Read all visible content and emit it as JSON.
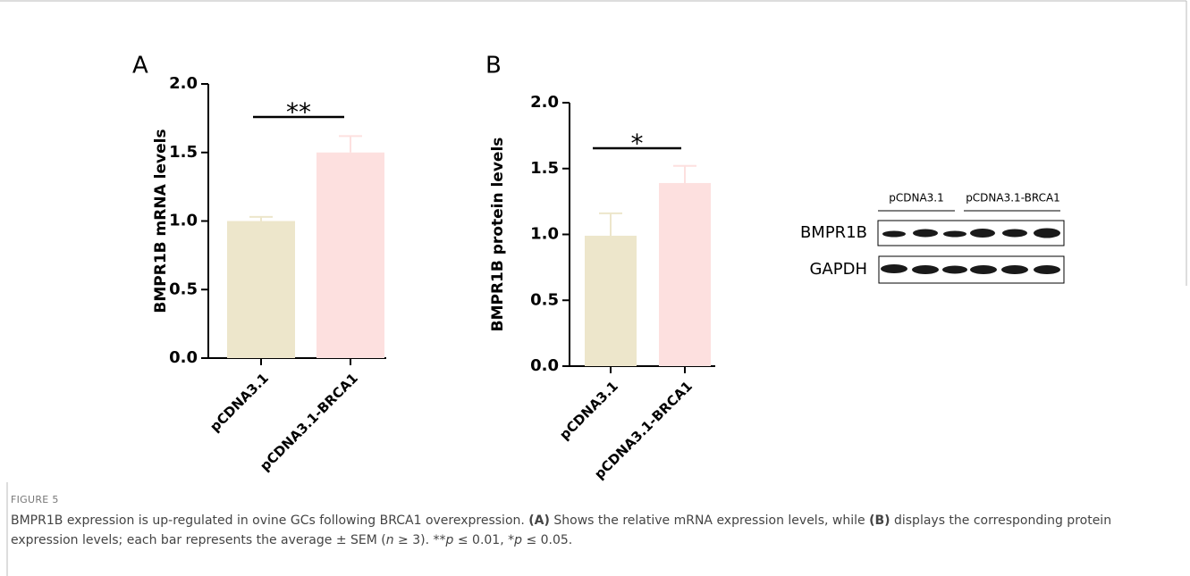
{
  "chart_data": [
    {
      "type": "bar",
      "panel": "A",
      "ylabel": "BMPR1B mRNA levels",
      "categories": [
        "pCDNA3.1",
        "pCDNA3.1-BRCA1"
      ],
      "values": [
        1.0,
        1.5
      ],
      "errors": [
        0.03,
        0.12
      ],
      "colors": [
        "#ede6cb",
        "#fde0df"
      ],
      "ylim": [
        0,
        2.0
      ],
      "yticks": [
        {
          "value": 0,
          "label": "0.0"
        },
        {
          "value": 0.5,
          "label": "0.5"
        },
        {
          "value": 1,
          "label": "1.0"
        },
        {
          "value": 1.5,
          "label": "1.5"
        },
        {
          "value": 2,
          "label": "2.0"
        }
      ],
      "annotation": "**"
    },
    {
      "type": "bar",
      "panel": "B",
      "ylabel": "BMPR1B protein levels",
      "categories": [
        "pCDNA3.1",
        "pCDNA3.1-BRCA1"
      ],
      "values": [
        0.99,
        1.39
      ],
      "errors": [
        0.17,
        0.13
      ],
      "colors": [
        "#ede6cb",
        "#fde0df"
      ],
      "ylim": [
        0,
        2.0
      ],
      "yticks": [
        {
          "value": 0,
          "label": "0.0"
        },
        {
          "value": 0.5,
          "label": "0.5"
        },
        {
          "value": 1,
          "label": "1.0"
        },
        {
          "value": 1.5,
          "label": "1.5"
        },
        {
          "value": 2,
          "label": "2.0"
        }
      ],
      "annotation": "*"
    }
  ],
  "blot": {
    "groups": [
      "pCDNA3.1",
      "pCDNA3.1-BRCA1"
    ],
    "rows": [
      "BMPR1B",
      "GAPDH"
    ]
  },
  "caption": {
    "label": "FIGURE 5",
    "parts": [
      "BMPR1B expression is up-regulated in ovine GCs following BRCA1 overexpression. ",
      "(A)",
      " Shows the relative mRNA expression levels, while ",
      "(B)",
      " displays the corresponding protein expression levels; each bar represents the average ± SEM (",
      "n",
      " ≥ 3). **",
      "p",
      " ≤ 0.01, *",
      "p",
      " ≤ 0.05."
    ]
  }
}
